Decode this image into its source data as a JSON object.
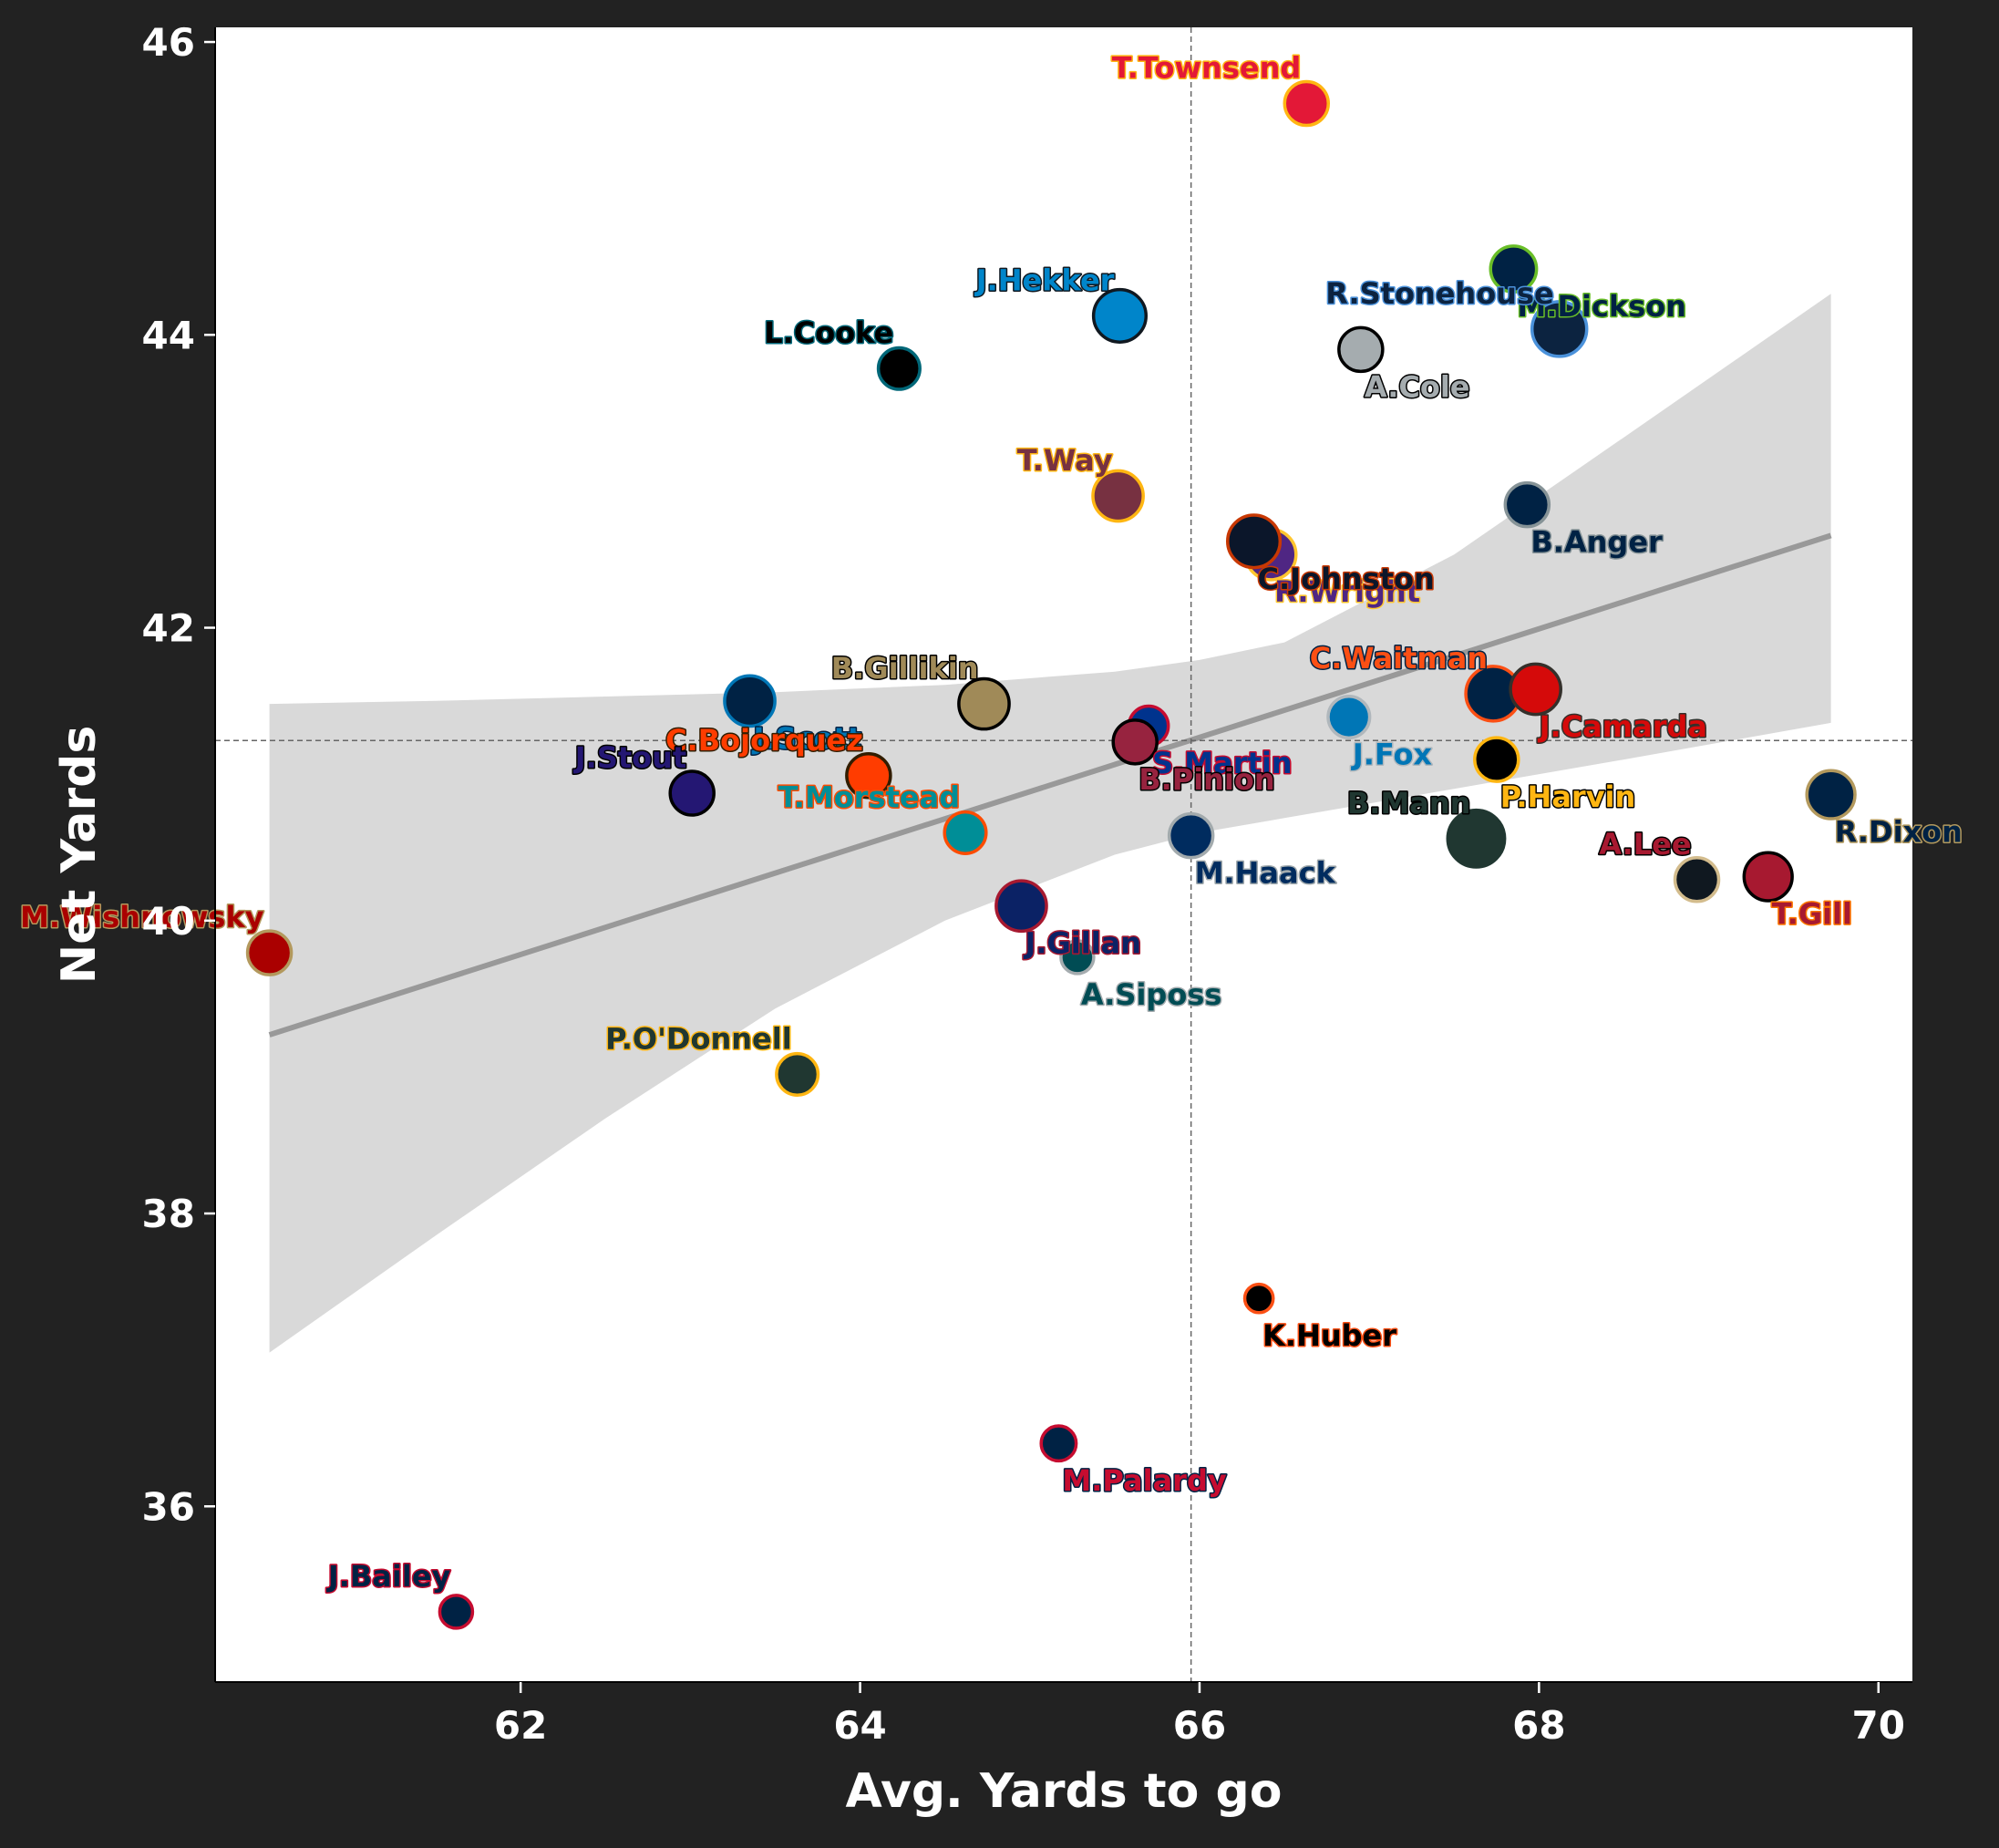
{
  "chart_data": {
    "type": "scatter",
    "title": "",
    "xlabel": "Avg. Yards to go",
    "ylabel": "Net Yards",
    "xlim": [
      60.2,
      70.2
    ],
    "ylim": [
      34.8,
      46.1
    ],
    "xticks": [
      62,
      64,
      66,
      68,
      70
    ],
    "yticks": [
      36,
      38,
      40,
      42,
      44,
      46
    ],
    "x_mean": 65.95,
    "y_mean": 41.23,
    "regression": {
      "x": [
        60.52,
        69.72
      ],
      "y": [
        39.22,
        42.63
      ]
    },
    "confidence_band": {
      "x": [
        60.52,
        61.5,
        62.5,
        63.5,
        64.5,
        65.5,
        66.0,
        66.5,
        67.5,
        68.5,
        69.72
      ],
      "upper": [
        41.48,
        41.5,
        41.53,
        41.56,
        41.61,
        41.7,
        41.78,
        41.9,
        42.5,
        43.3,
        44.28
      ],
      "lower": [
        37.05,
        37.85,
        38.65,
        39.4,
        40.0,
        40.45,
        40.6,
        40.7,
        40.9,
        41.1,
        41.35
      ]
    },
    "points": [
      {
        "name": "T.Townsend",
        "x": 66.63,
        "y": 45.58,
        "fill": "#e31837",
        "edge": "#ffb612",
        "text": "#e31837",
        "outline": "#ffb612",
        "anchor": "end",
        "pos": "above",
        "size": 1.0
      },
      {
        "name": "M.Dickson",
        "x": 67.85,
        "y": 44.45,
        "fill": "#002244",
        "edge": "#69be28",
        "text": "#002244",
        "outline": "#69be28",
        "anchor": "start",
        "pos": "below",
        "size": 1.05
      },
      {
        "name": "R.Stonehouse",
        "x": 68.12,
        "y": 44.04,
        "fill": "#0c2340",
        "edge": "#4b92db",
        "text": "#0c2340",
        "outline": "#4b92db",
        "anchor": "end",
        "pos": "above",
        "size": 1.25
      },
      {
        "name": "J.Hekker",
        "x": 65.53,
        "y": 44.13,
        "fill": "#0085ca",
        "edge": "#101820",
        "text": "#0085ca",
        "outline": "#101820",
        "anchor": "end",
        "pos": "above",
        "size": 1.2
      },
      {
        "name": "A.Cole",
        "x": 66.95,
        "y": 43.9,
        "fill": "#a5acaf",
        "edge": "#000000",
        "text": "#a5acaf",
        "outline": "#000000",
        "anchor": "start",
        "pos": "below",
        "size": 1.0
      },
      {
        "name": "L.Cooke",
        "x": 64.23,
        "y": 43.77,
        "fill": "#000000",
        "edge": "#006778",
        "text": "#000000",
        "outline": "#006778",
        "anchor": "end",
        "pos": "above",
        "size": 0.95
      },
      {
        "name": "T.Way",
        "x": 65.52,
        "y": 42.9,
        "fill": "#773141",
        "edge": "#ffb612",
        "text": "#773141",
        "outline": "#ffb612",
        "anchor": "end",
        "pos": "above",
        "size": 1.15
      },
      {
        "name": "B.Anger",
        "x": 67.93,
        "y": 42.84,
        "fill": "#002244",
        "edge": "#869397",
        "text": "#002244",
        "outline": "#869397",
        "anchor": "start",
        "pos": "below",
        "size": 1.0
      },
      {
        "name": "R.Wright",
        "x": 66.42,
        "y": 42.5,
        "fill": "#4f2683",
        "edge": "#ffc62f",
        "text": "#4f2683",
        "outline": "#ffc62f",
        "anchor": "start",
        "pos": "below",
        "size": 1.15
      },
      {
        "name": "C.Johnston",
        "x": 66.32,
        "y": 42.59,
        "fill": "#0b162a",
        "edge": "#c83803",
        "text": "#0b162a",
        "outline": "#c83803",
        "anchor": "start",
        "pos": "below",
        "size": 1.2
      },
      {
        "name": "B.Gillikin",
        "x": 64.73,
        "y": 41.48,
        "fill": "#a08a58",
        "edge": "#000000",
        "text": "#a08a58",
        "outline": "#000000",
        "anchor": "end",
        "pos": "above",
        "size": 1.15
      },
      {
        "name": "C.Waitman",
        "x": 67.73,
        "y": 41.55,
        "fill": "#002244",
        "edge": "#fb4f14",
        "text": "#fb4f14",
        "outline": "#002244",
        "anchor": "end",
        "pos": "above",
        "size": 1.25
      },
      {
        "name": "J.Camarda",
        "x": 67.98,
        "y": 41.58,
        "fill": "#d50a0a",
        "edge": "#34302b",
        "text": "#d50a0a",
        "outline": "#34302b",
        "anchor": "start",
        "pos": "below",
        "size": 1.15
      },
      {
        "name": "J.Fox",
        "x": 66.88,
        "y": 41.39,
        "fill": "#0076b6",
        "edge": "#b0b7bc",
        "text": "#0076b6",
        "outline": "#b0b7bc",
        "anchor": "start",
        "pos": "below",
        "size": 0.95
      },
      {
        "name": "J.Scott",
        "x": 63.35,
        "y": 41.5,
        "fill": "#002244",
        "edge": "#0076b6",
        "text": "#0076b6",
        "outline": "#002244",
        "anchor": "start",
        "pos": "below",
        "size": 1.15
      },
      {
        "name": "S.Martin",
        "x": 65.7,
        "y": 41.33,
        "fill": "#00338d",
        "edge": "#c60c30",
        "text": "#00338d",
        "outline": "#c60c30",
        "anchor": "start",
        "pos": "below",
        "size": 0.9
      },
      {
        "name": "B.Pinion",
        "x": 65.62,
        "y": 41.22,
        "fill": "#97233f",
        "edge": "#000000",
        "text": "#97233f",
        "outline": "#000000",
        "anchor": "start",
        "pos": "below",
        "size": 1.0
      },
      {
        "name": "P.Harvin",
        "x": 67.75,
        "y": 41.1,
        "fill": "#000000",
        "edge": "#ffb612",
        "text": "#ffb612",
        "outline": "#000000",
        "anchor": "start",
        "pos": "below",
        "size": 1.0
      },
      {
        "name": "C.Bojorquez",
        "x": 64.05,
        "y": 40.99,
        "fill": "#ff3c00",
        "edge": "#311d00",
        "text": "#ff3c00",
        "outline": "#311d00",
        "anchor": "end",
        "pos": "above",
        "size": 1.0
      },
      {
        "name": "J.Stout",
        "x": 63.01,
        "y": 40.87,
        "fill": "#241773",
        "edge": "#000000",
        "text": "#241773",
        "outline": "#000000",
        "anchor": "end",
        "pos": "above",
        "size": 1.0
      },
      {
        "name": "R.Dixon",
        "x": 69.72,
        "y": 40.86,
        "fill": "#002244",
        "edge": "#b3995d",
        "text": "#002244",
        "outline": "#b3995d",
        "anchor": "start",
        "pos": "below",
        "size": 1.1
      },
      {
        "name": "T.Morstead",
        "x": 64.62,
        "y": 40.6,
        "fill": "#008e97",
        "edge": "#fc4c02",
        "text": "#008e97",
        "outline": "#fc4c02",
        "anchor": "end",
        "pos": "above",
        "size": 0.95
      },
      {
        "name": "M.Haack",
        "x": 65.95,
        "y": 40.58,
        "fill": "#002c5f",
        "edge": "#a2aaad",
        "text": "#002c5f",
        "outline": "#a2aaad",
        "anchor": "start",
        "pos": "below",
        "size": 1.0
      },
      {
        "name": "B.Mann",
        "x": 67.63,
        "y": 40.56,
        "fill": "#203731",
        "edge": "#203731",
        "text": "#203731",
        "outline": "#000000",
        "anchor": "end",
        "pos": "above",
        "size": 1.3
      },
      {
        "name": "A.Lee",
        "x": 68.93,
        "y": 40.28,
        "fill": "#101820",
        "edge": "#d3bc8d",
        "text": "#a71930",
        "outline": "#000000",
        "anchor": "end",
        "pos": "above",
        "size": 1.0
      },
      {
        "name": "T.Gill",
        "x": 69.35,
        "y": 40.3,
        "fill": "#a71930",
        "edge": "#000000",
        "text": "#a71930",
        "outline": "#ff7900",
        "anchor": "start",
        "pos": "below",
        "size": 1.1
      },
      {
        "name": "J.Gillan",
        "x": 64.95,
        "y": 40.1,
        "fill": "#0b2265",
        "edge": "#a71930",
        "text": "#0b2265",
        "outline": "#a71930",
        "anchor": "start",
        "pos": "below",
        "size": 1.15
      },
      {
        "name": "M.Wishnowsky",
        "x": 60.52,
        "y": 39.78,
        "fill": "#aa0000",
        "edge": "#b3995d",
        "text": "#aa0000",
        "outline": "#b3995d",
        "anchor": "end",
        "pos": "above",
        "size": 1.0
      },
      {
        "name": "A.Siposs",
        "x": 65.28,
        "y": 39.75,
        "fill": "#004c54",
        "edge": "#a5acaf",
        "text": "#004c54",
        "outline": "#a5acaf",
        "anchor": "start",
        "pos": "below",
        "size": 0.75
      },
      {
        "name": "P.O'Donnell",
        "x": 63.63,
        "y": 38.95,
        "fill": "#203731",
        "edge": "#ffb612",
        "text": "#203731",
        "outline": "#ffb612",
        "anchor": "end",
        "pos": "above",
        "size": 0.95
      },
      {
        "name": "K.Huber",
        "x": 66.35,
        "y": 37.42,
        "fill": "#000000",
        "edge": "#fb4f14",
        "text": "#000000",
        "outline": "#fb4f14",
        "anchor": "start",
        "pos": "below",
        "size": 0.65
      },
      {
        "name": "M.Palardy",
        "x": 65.17,
        "y": 36.43,
        "fill": "#002244",
        "edge": "#c60c30",
        "text": "#c60c30",
        "outline": "#002244",
        "anchor": "start",
        "pos": "below",
        "size": 0.8
      },
      {
        "name": "J.Bailey",
        "x": 61.62,
        "y": 35.28,
        "fill": "#002244",
        "edge": "#c60c30",
        "text": "#002244",
        "outline": "#c60c30",
        "anchor": "end",
        "pos": "above",
        "size": 0.75
      }
    ]
  }
}
